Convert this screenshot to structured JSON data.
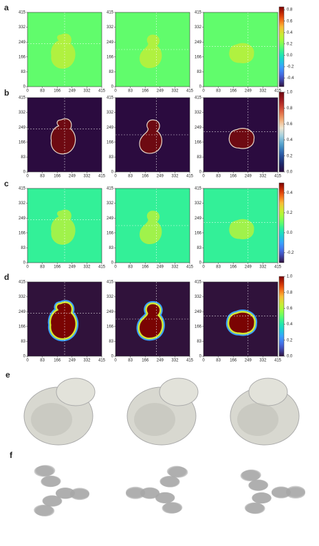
{
  "chart_data": [
    {
      "type": "heatmap",
      "label": "a",
      "plots": 3,
      "xlim": [
        0,
        415
      ],
      "ylim": [
        0,
        415
      ],
      "xticks": [
        0,
        83,
        166,
        249,
        332,
        415
      ],
      "yticks": [
        0,
        83,
        166,
        249,
        332,
        415
      ],
      "colormap": "turbo",
      "background_value": 0.15,
      "blob_value": 0.35,
      "clim": [
        -0.55,
        0.85
      ],
      "cticks": [
        0.8,
        0.6,
        0.4,
        0.2,
        {
          "value": 0,
          "label": "0.0"
        },
        -0.2,
        -0.4
      ]
    },
    {
      "type": "heatmap",
      "label": "b",
      "plots": 3,
      "xlim": [
        0,
        415
      ],
      "ylim": [
        0,
        415
      ],
      "xticks": [
        0,
        83,
        166,
        249,
        332,
        415
      ],
      "yticks": [
        0,
        83,
        166,
        249,
        332,
        415
      ],
      "colormap": "icefire",
      "background_value": 0,
      "blob_value": 1,
      "clim": [
        0,
        1
      ],
      "cticks": [
        {
          "value": 1,
          "label": "1.0"
        },
        0.8,
        0.6,
        0.4,
        0.2,
        {
          "value": 0,
          "label": "0.0"
        }
      ]
    },
    {
      "type": "heatmap",
      "label": "c",
      "plots": 3,
      "xlim": [
        0,
        415
      ],
      "ylim": [
        0,
        415
      ],
      "xticks": [
        0,
        83,
        166,
        249,
        332,
        415
      ],
      "yticks": [
        0,
        83,
        166,
        249,
        332,
        415
      ],
      "colormap": "turbo",
      "background_value": 0.05,
      "blob_value": 0.2,
      "clim": [
        -0.3,
        0.5
      ],
      "cticks": [
        0.4,
        0.2,
        {
          "value": 0,
          "label": "0.0"
        },
        -0.2
      ]
    },
    {
      "type": "heatmap",
      "label": "d",
      "plots": 3,
      "xlim": [
        0,
        415
      ],
      "ylim": [
        0,
        415
      ],
      "xticks": [
        0,
        83,
        166,
        249,
        332,
        415
      ],
      "yticks": [
        0,
        83,
        166,
        249,
        332,
        415
      ],
      "colormap": "turbo",
      "background_value": 0,
      "blob_value": 1,
      "clim": [
        0,
        1
      ],
      "cticks": [
        {
          "value": 1,
          "label": "1.0"
        },
        0.8,
        0.6,
        0.4,
        0.2,
        {
          "value": 0,
          "label": "0.0"
        }
      ]
    }
  ],
  "renders": [
    {
      "label": "e"
    },
    {
      "label": "f"
    }
  ]
}
